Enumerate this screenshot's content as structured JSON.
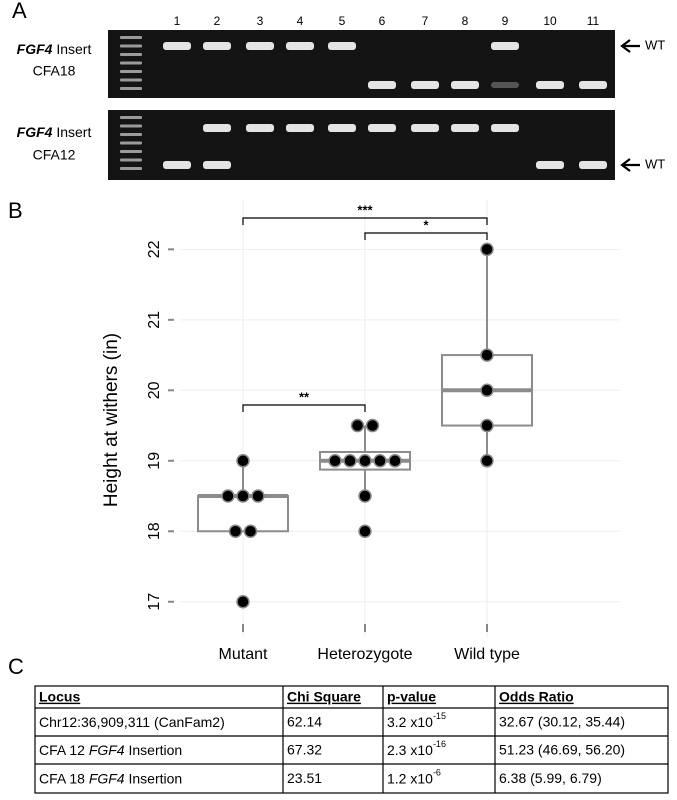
{
  "panel_a": {
    "label": "A",
    "lanes": [
      "1",
      "2",
      "3",
      "4",
      "5",
      "6",
      "7",
      "8",
      "9",
      "10",
      "11"
    ],
    "gels": [
      {
        "gene": "FGF4",
        "label_rest": " Insert",
        "locus": "CFA18",
        "marker": "WT"
      },
      {
        "gene": "FGF4",
        "label_rest": " Insert",
        "locus": "CFA12",
        "marker": "WT"
      }
    ]
  },
  "panel_b_label": "B",
  "chart_data": {
    "type": "box",
    "ylabel": "Height at withers (in)",
    "categories": [
      "Mutant",
      "Heterozygote",
      "Wild type"
    ],
    "ylim": [
      16.5,
      22.7
    ],
    "yticks": [
      17,
      18,
      19,
      20,
      21,
      22
    ],
    "grid": true,
    "box_color": "#8c8c8c",
    "point_color": "#000000",
    "boxes": [
      {
        "q1": 18,
        "median": 18.5,
        "q3": 18.5,
        "whisker_low": 18,
        "whisker_high": 19
      },
      {
        "q1": 18.875,
        "median": 19,
        "q3": 19.125,
        "whisker_low": 18.5,
        "whisker_high": 19.5
      },
      {
        "q1": 19.5,
        "median": 20,
        "q3": 20.5,
        "whisker_low": 19,
        "whisker_high": 22
      }
    ],
    "points": [
      [
        19,
        18.5,
        18.5,
        18.5,
        18,
        18,
        17
      ],
      [
        19.5,
        19.5,
        19,
        19,
        19,
        19,
        19,
        18.5,
        18
      ],
      [
        22,
        20.5,
        20,
        19.5,
        19
      ]
    ],
    "annotations": [
      "***",
      "*",
      "**"
    ]
  },
  "panel_c": {
    "label": "C",
    "header": [
      "Locus",
      "Chi Square",
      "p-value",
      "Odds Ratio"
    ],
    "rows": [
      [
        [
          {
            "text": "Chr12:36,909,311 (CanFam2)"
          }
        ],
        "62.14",
        {
          "mantissa": "3.2 x10",
          "exponent": "-15"
        },
        "32.67 (30.12, 35.44)"
      ],
      [
        [
          {
            "text": "CFA 12 "
          },
          {
            "text": "FGF4",
            "italic": true
          },
          {
            "text": " Insertion"
          }
        ],
        "67.32",
        {
          "mantissa": "2.3 x10",
          "exponent": "-16"
        },
        "51.23 (46.69, 56.20)"
      ],
      [
        [
          {
            "text": "CFA 18 "
          },
          {
            "text": "FGF4",
            "italic": true
          },
          {
            "text": " Insertion"
          }
        ],
        "23.51",
        {
          "mantissa": "1.2 x10",
          "exponent": "-6"
        },
        "6.38 (5.99, 6.79)"
      ]
    ]
  }
}
